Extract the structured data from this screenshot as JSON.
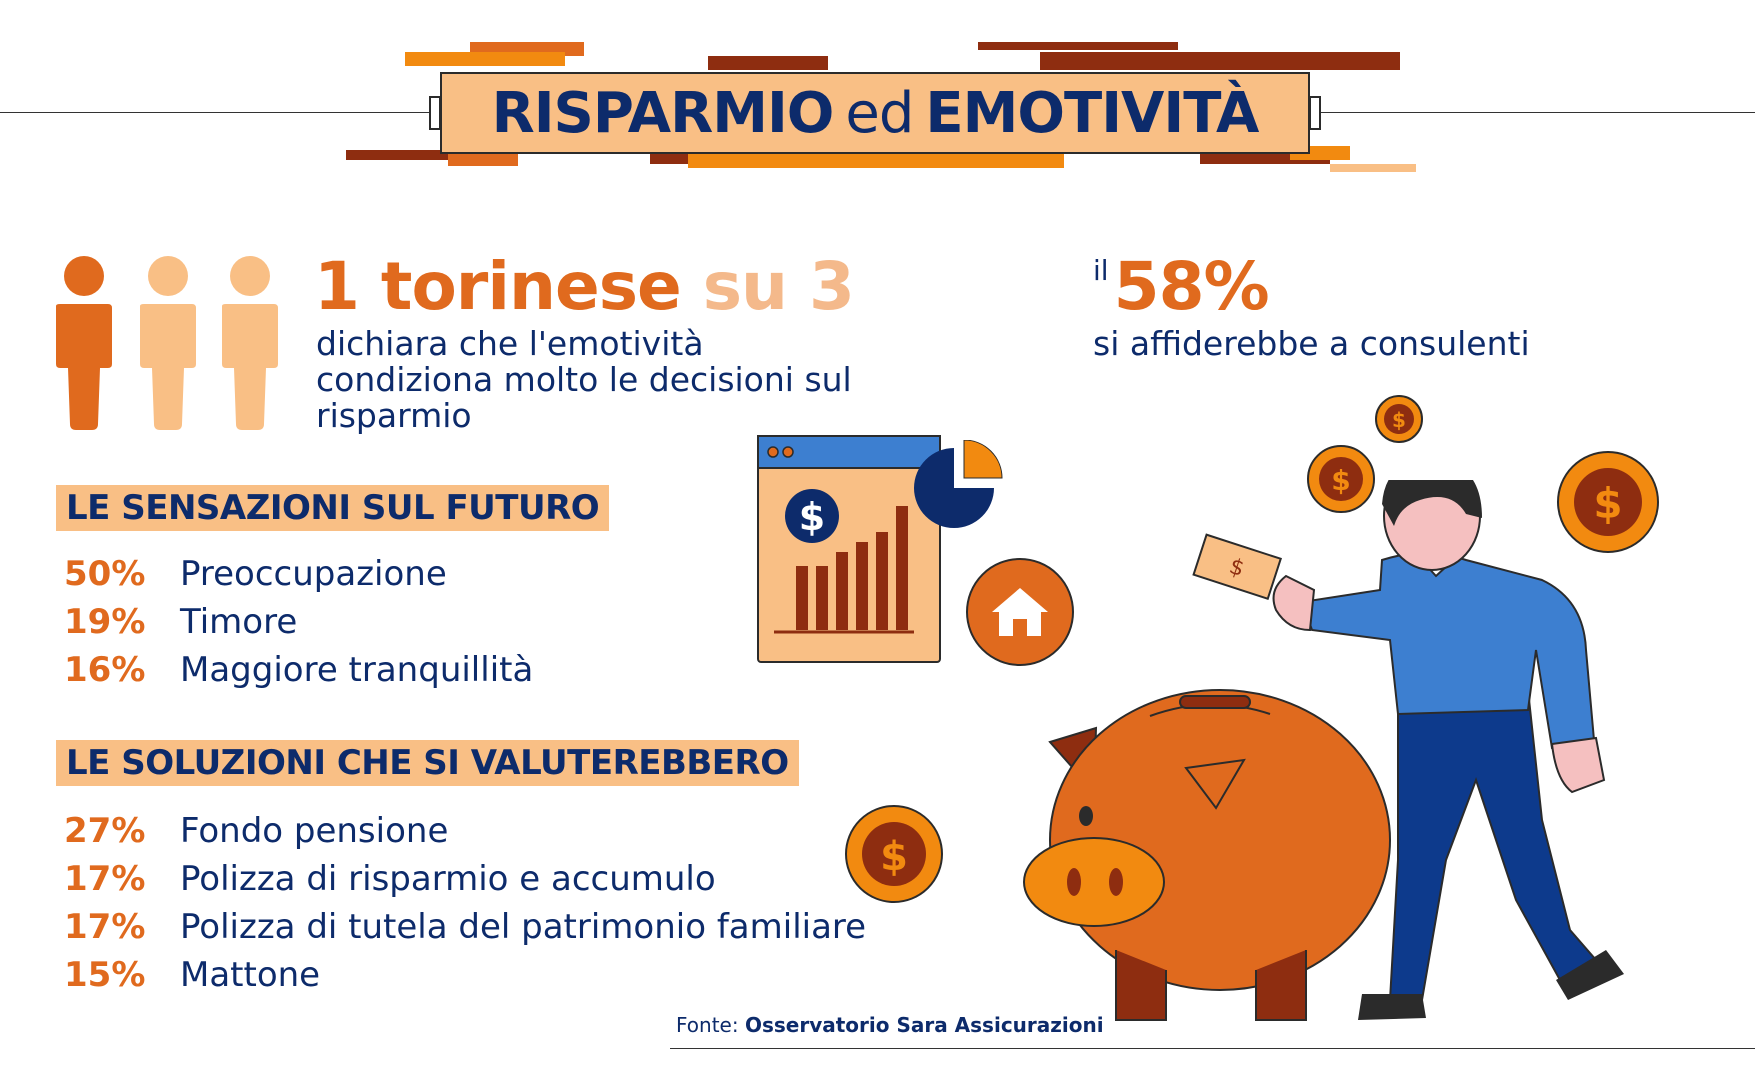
{
  "title": {
    "part1": "RISPARMIO",
    "part2": "ed",
    "part3": "EMOTIVITÀ"
  },
  "stat_torinese": {
    "headline_main": "1 torinese",
    "headline_ratio": "su 3",
    "description": "dichiara che l'emotività condiziona molto le decisioni sul risparmio"
  },
  "stat_consulenti": {
    "prefix": "il",
    "value": "58%",
    "description": "si affiderebbe a consulenti"
  },
  "sensazioni": {
    "title": "LE SENSAZIONI SUL FUTURO",
    "items": [
      {
        "pct": "50%",
        "label": "Preoccupazione"
      },
      {
        "pct": "19%",
        "label": "Timore"
      },
      {
        "pct": "16%",
        "label": "Maggiore tranquillità"
      }
    ]
  },
  "soluzioni": {
    "title": "LE SOLUZIONI CHE SI VALUTEREBBERO",
    "items": [
      {
        "pct": "27%",
        "label": "Fondo pensione"
      },
      {
        "pct": "17%",
        "label": "Polizza di risparmio e accumulo"
      },
      {
        "pct": "17%",
        "label": "Polizza di tutela del patrimonio familiare"
      },
      {
        "pct": "15%",
        "label": "Mattone"
      }
    ]
  },
  "source": {
    "prefix": "Fonte:",
    "name": "Osservatorio Sara Assicurazioni"
  },
  "icons": {
    "people": "person-icon",
    "chart": "bar-chart-window-icon",
    "pie": "pie-chart-icon",
    "house": "house-icon",
    "coins": "dollar-coin-icon",
    "pig": "piggy-bank-illustration",
    "man": "man-illustration"
  },
  "colors": {
    "navy": "#0d2b6b",
    "orange": "#e06a1e",
    "peach": "#f9bf85",
    "dark_red": "#8e2d10",
    "blue": "#3d7fd0"
  }
}
